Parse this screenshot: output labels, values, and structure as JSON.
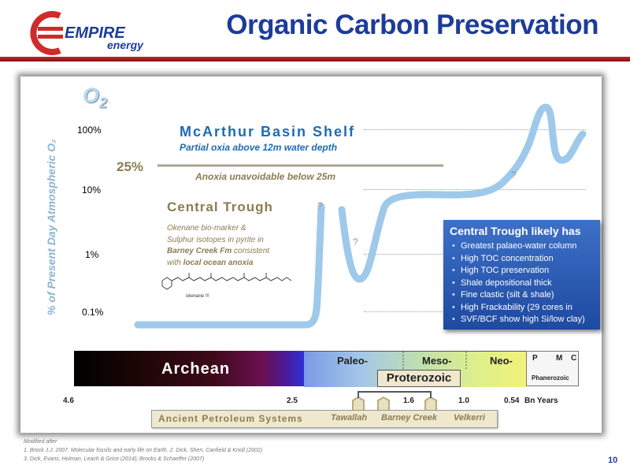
{
  "brand": {
    "name": "EMPIRE",
    "sub": "energy",
    "colors": {
      "red": "#d02a2a",
      "blue": "#1d3c9a"
    }
  },
  "header": {
    "title": "Organic Carbon Preservation"
  },
  "chart": {
    "o2_main": "O",
    "o2_sub": "2",
    "y_axis_label": "% of Present Day Atmospheric O₂",
    "y_ticks": [
      "100%",
      "10%",
      "1%",
      "0.1%"
    ]
  },
  "mcarthur": {
    "title": "McArthur Basin Shelf",
    "subtitle": "Partial oxia above 12m water depth",
    "pct": "25%",
    "anoxia": "Anoxia unavoidable below 25m"
  },
  "central_trough": {
    "title": "Central Trough",
    "line1": "Okenane bio-marker &",
    "line2": "Sulphur isotopes in pyrite in",
    "line3_bold": "Barney Creek Fm",
    "line3_rest": " consistent",
    "line4_pre": "with ",
    "line4_bold": "local ocean anoxia",
    "molecule": "okenane !!!"
  },
  "question_marks": [
    "?",
    "?",
    "?"
  ],
  "callout": {
    "title": "Central Trough likely has",
    "items": [
      "Greatest palaeo-water column",
      "High TOC concentration",
      "High TOC preservation",
      "Shale depositional thick",
      "Fine clastic (silt & shale)",
      "High Frackability (29 cores in",
      "SVF/BCF show high Si/low clay)"
    ]
  },
  "timeline": {
    "archean": "Archean",
    "proterozoic": "Proterozoic",
    "eras": [
      "Paleo-",
      "Meso-",
      "Neo-"
    ],
    "phanerozoic": {
      "label": "Phanerozoic",
      "periods": [
        "P",
        "M",
        "C"
      ]
    },
    "ticks": [
      "4.6",
      "2.5",
      "1.6",
      "1.0",
      "0.54",
      "Bn Years"
    ]
  },
  "petroleum_systems": {
    "title": "Ancient Petroleum Systems",
    "items": [
      "Tawallah",
      "Barney Creek",
      "Velkerri"
    ]
  },
  "references": {
    "line0": "Modified after",
    "line1": "1. Brock J.J. 2007. Molecular fossils and early life on Earth.  2. Dick, Shen, Canfield & Knoll (2002)",
    "line2": "3. Dick, Evans, Holman, Leach & Grice (2014); Brocks & Schaeffer (2007)"
  },
  "page_number": "10"
}
